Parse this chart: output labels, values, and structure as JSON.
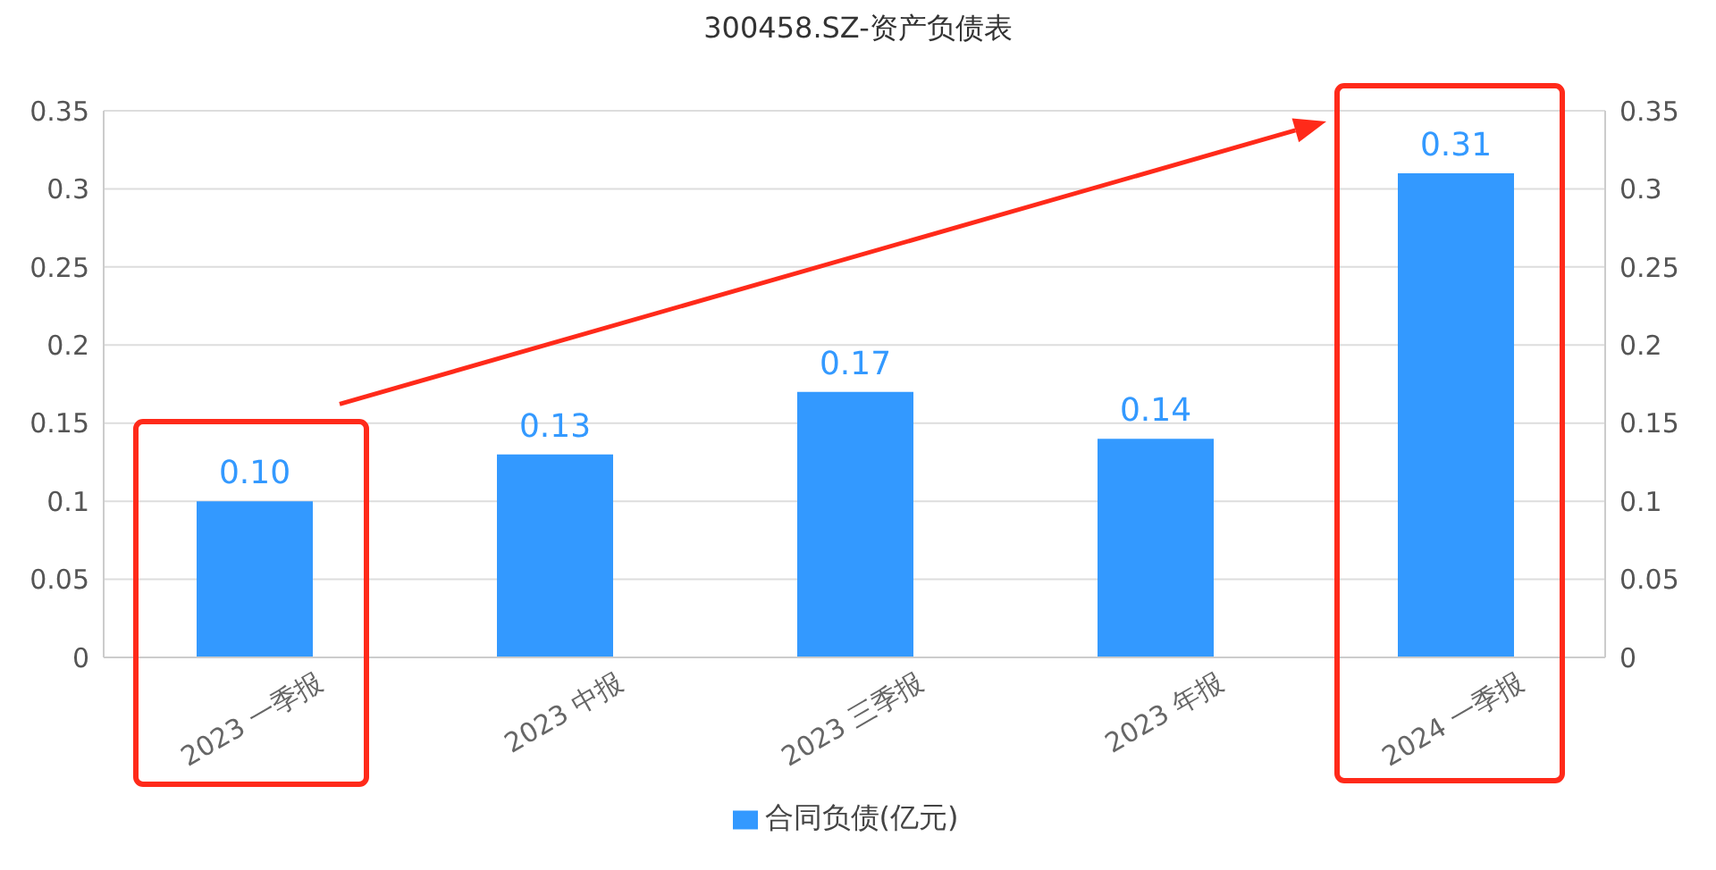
{
  "chart_data": {
    "type": "bar",
    "title": "300458.SZ-资产负债表",
    "categories": [
      "2023 一季报",
      "2023 中报",
      "2023 三季报",
      "2023 年报",
      "2024 一季报"
    ],
    "series": [
      {
        "name": "合同负债(亿元)",
        "color": "#3399ff",
        "values": [
          0.1,
          0.13,
          0.17,
          0.14,
          0.31
        ],
        "value_labels": [
          "0.10",
          "0.13",
          "0.17",
          "0.14",
          "0.31"
        ]
      }
    ],
    "ylim": [
      0,
      0.35
    ],
    "yticks": [
      0,
      0.05,
      0.1,
      0.15,
      0.2,
      0.25,
      0.3,
      0.35
    ],
    "y2lim": [
      0,
      0.35
    ],
    "y2ticks": [
      0,
      0.05,
      0.1,
      0.15,
      0.2,
      0.25,
      0.3,
      0.35
    ],
    "grid": "y",
    "legend": "bottom"
  }
}
